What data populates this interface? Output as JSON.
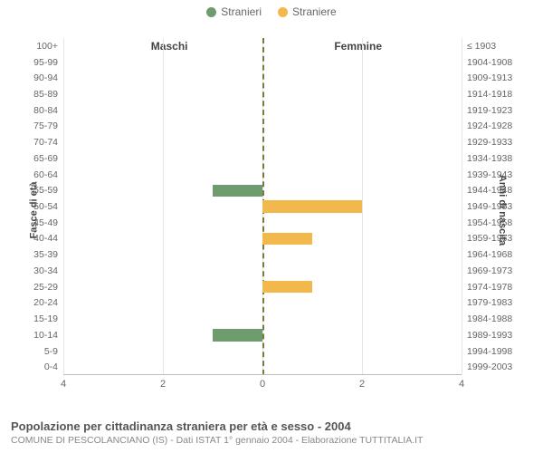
{
  "legend": {
    "male": {
      "label": "Stranieri",
      "color": "#6e9c6e"
    },
    "female": {
      "label": "Straniere",
      "color": "#f2b84b"
    }
  },
  "chart": {
    "type": "bar",
    "header_left": "Maschi",
    "header_right": "Femmine",
    "axis_left_title": "Fasce di età",
    "axis_right_title": "Anni di nascita",
    "xmax": 4,
    "xtick_step": 2,
    "xticks": [
      4,
      2,
      0,
      2,
      4
    ],
    "grid_color": "#e6e6e6",
    "center_line_color": "#7a7a3a",
    "bar_fill_opacity": 1,
    "rows": [
      {
        "age": "100+",
        "birth": "≤ 1903",
        "m": 0,
        "f": 0
      },
      {
        "age": "95-99",
        "birth": "1904-1908",
        "m": 0,
        "f": 0
      },
      {
        "age": "90-94",
        "birth": "1909-1913",
        "m": 0,
        "f": 0
      },
      {
        "age": "85-89",
        "birth": "1914-1918",
        "m": 0,
        "f": 0
      },
      {
        "age": "80-84",
        "birth": "1919-1923",
        "m": 0,
        "f": 0
      },
      {
        "age": "75-79",
        "birth": "1924-1928",
        "m": 0,
        "f": 0
      },
      {
        "age": "70-74",
        "birth": "1929-1933",
        "m": 0,
        "f": 0
      },
      {
        "age": "65-69",
        "birth": "1934-1938",
        "m": 0,
        "f": 0
      },
      {
        "age": "60-64",
        "birth": "1939-1943",
        "m": 0,
        "f": 0
      },
      {
        "age": "55-59",
        "birth": "1944-1948",
        "m": 1,
        "f": 0
      },
      {
        "age": "50-54",
        "birth": "1949-1953",
        "m": 0,
        "f": 2
      },
      {
        "age": "45-49",
        "birth": "1954-1958",
        "m": 0,
        "f": 0
      },
      {
        "age": "40-44",
        "birth": "1959-1963",
        "m": 0,
        "f": 1
      },
      {
        "age": "35-39",
        "birth": "1964-1968",
        "m": 0,
        "f": 0
      },
      {
        "age": "30-34",
        "birth": "1969-1973",
        "m": 0,
        "f": 0
      },
      {
        "age": "25-29",
        "birth": "1974-1978",
        "m": 0,
        "f": 1
      },
      {
        "age": "20-24",
        "birth": "1979-1983",
        "m": 0,
        "f": 0
      },
      {
        "age": "15-19",
        "birth": "1984-1988",
        "m": 0,
        "f": 0
      },
      {
        "age": "10-14",
        "birth": "1989-1993",
        "m": 1,
        "f": 0
      },
      {
        "age": "5-9",
        "birth": "1994-1998",
        "m": 0,
        "f": 0
      },
      {
        "age": "0-4",
        "birth": "1999-2003",
        "m": 0,
        "f": 0
      }
    ]
  },
  "footer": {
    "title": "Popolazione per cittadinanza straniera per età e sesso - 2004",
    "subtitle": "COMUNE DI PESCOLANCIANO (IS) - Dati ISTAT 1° gennaio 2004 - Elaborazione TUTTITALIA.IT"
  }
}
